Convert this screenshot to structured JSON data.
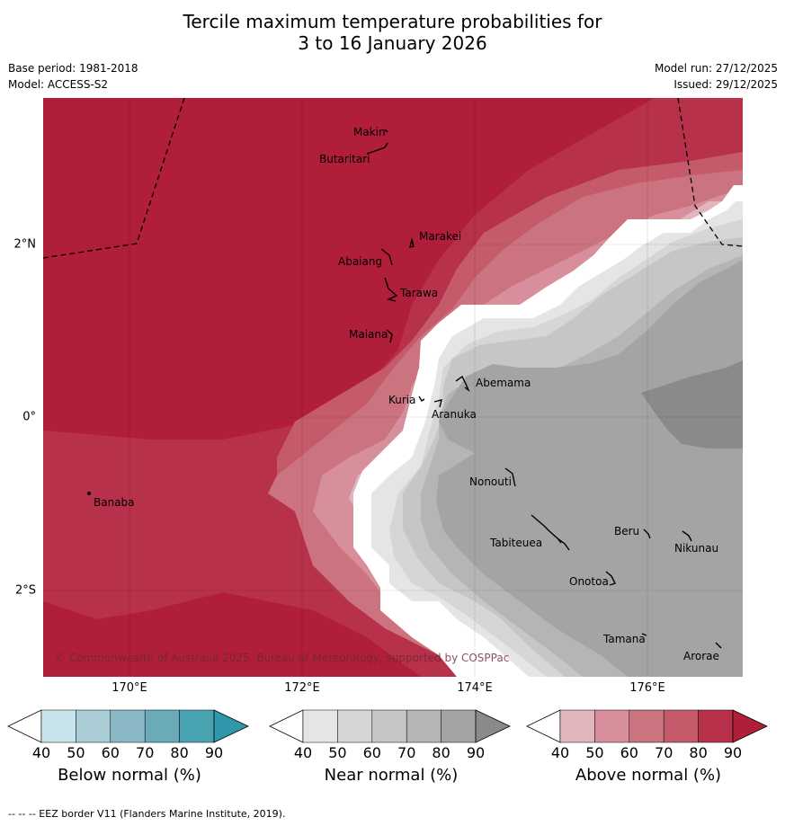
{
  "header": {
    "title_line1": "Tercile maximum temperature probabilities for",
    "title_line2": "3 to 16 January 2026",
    "base_period": "Base period: 1981-2018",
    "model": "Model: ACCESS-S2",
    "model_run": "Model run: 27/12/2025",
    "issued": "Issued: 29/12/2025"
  },
  "map": {
    "lon_labels": [
      "170°E",
      "172°E",
      "174°E",
      "176°E"
    ],
    "lat_labels": [
      "2°N",
      "0°",
      "2°S"
    ],
    "copyright": "© Commonwealth of Australia 2025, Bureau of Meteorology, supported by COSPPac",
    "islands": [
      "Makin",
      "Butaritari",
      "Marakei",
      "Abaiang",
      "Tarawa",
      "Maiana",
      "Abemama",
      "Kuria",
      "Aranuka",
      "Nonouti",
      "Banaba",
      "Tabiteuea",
      "Beru",
      "Nikunau",
      "Onotoa",
      "Tamana",
      "Arorae"
    ]
  },
  "colorbars": [
    {
      "title": "Below normal (%)",
      "ticks": [
        "40",
        "50",
        "60",
        "70",
        "80",
        "90"
      ],
      "colors": [
        "#ffffff",
        "#c9e3ea",
        "#a9ccd5",
        "#8ab9c5",
        "#6aabb8",
        "#4aa3b3",
        "#2f97aa"
      ]
    },
    {
      "title": "Near normal (%)",
      "ticks": [
        "40",
        "50",
        "60",
        "70",
        "80",
        "90"
      ],
      "colors": [
        "#ffffff",
        "#e5e5e5",
        "#d6d6d6",
        "#c6c6c6",
        "#b5b5b5",
        "#a4a4a4",
        "#8a8a8a"
      ]
    },
    {
      "title": "Above normal (%)",
      "ticks": [
        "40",
        "50",
        "60",
        "70",
        "80",
        "90"
      ],
      "colors": [
        "#ffffff",
        "#e2b5bd",
        "#d68f9b",
        "#cc7380",
        "#c55a6a",
        "#b8314a",
        "#b01e3a"
      ]
    }
  ],
  "footer": {
    "eez_note": "--  --  -- EEZ border V11 (Flanders Marine Institute, 2019)."
  }
}
